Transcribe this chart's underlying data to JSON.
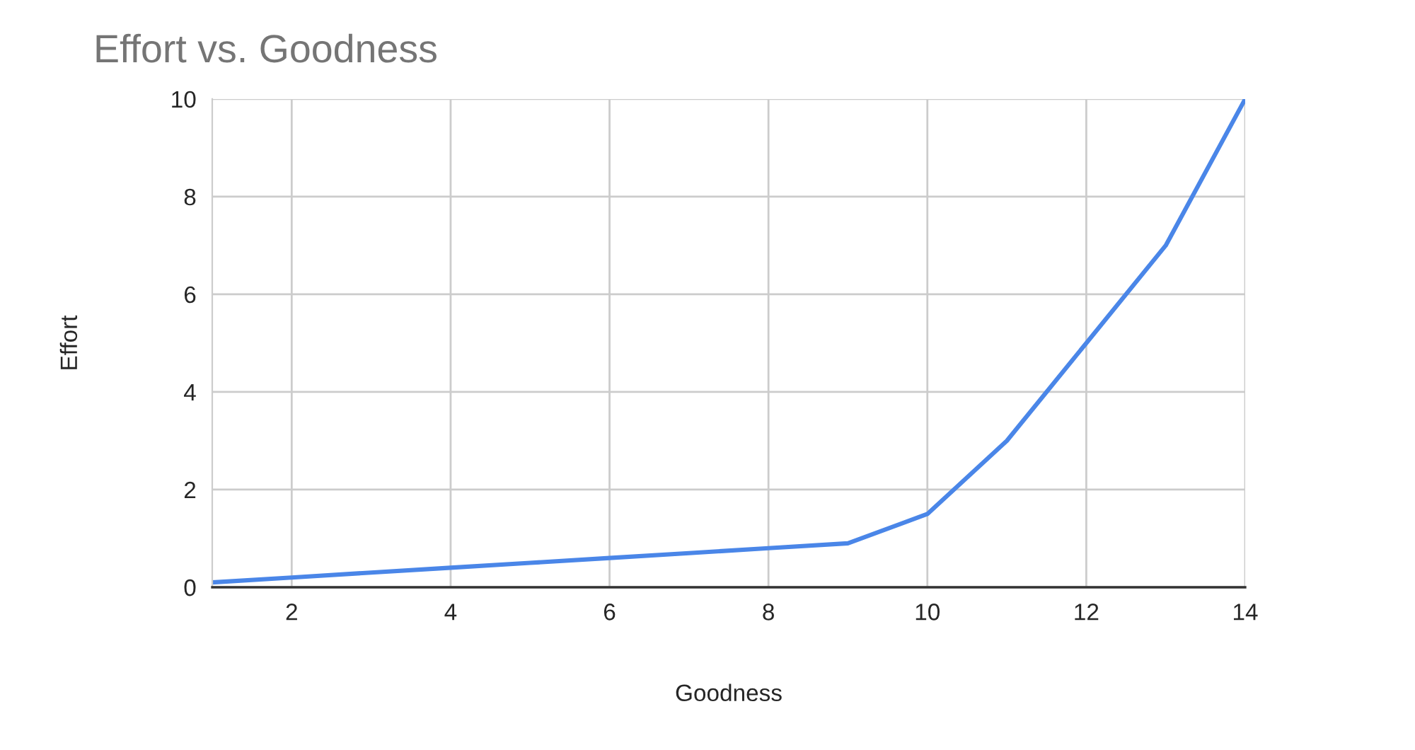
{
  "chart_data": {
    "type": "line",
    "title": "Effort vs. Goodness",
    "xlabel": "Goodness",
    "ylabel": "Effort",
    "x": [
      1,
      2,
      3,
      4,
      5,
      6,
      7,
      8,
      9,
      10,
      11,
      12,
      13,
      14
    ],
    "series": [
      {
        "color": "#4a86e8",
        "values": [
          0.1,
          0.2,
          0.3,
          0.4,
          0.5,
          0.6,
          0.7,
          0.8,
          0.9,
          1.5,
          3,
          5,
          7,
          10
        ]
      }
    ],
    "xlim": [
      1,
      14
    ],
    "xticks": [
      2,
      4,
      6,
      8,
      10,
      12,
      14
    ],
    "ylim": [
      0,
      10
    ],
    "yticks": [
      0,
      2,
      4,
      6,
      8,
      10
    ],
    "grid": true,
    "marker": "none",
    "line_style": "solid",
    "legend": false
  }
}
